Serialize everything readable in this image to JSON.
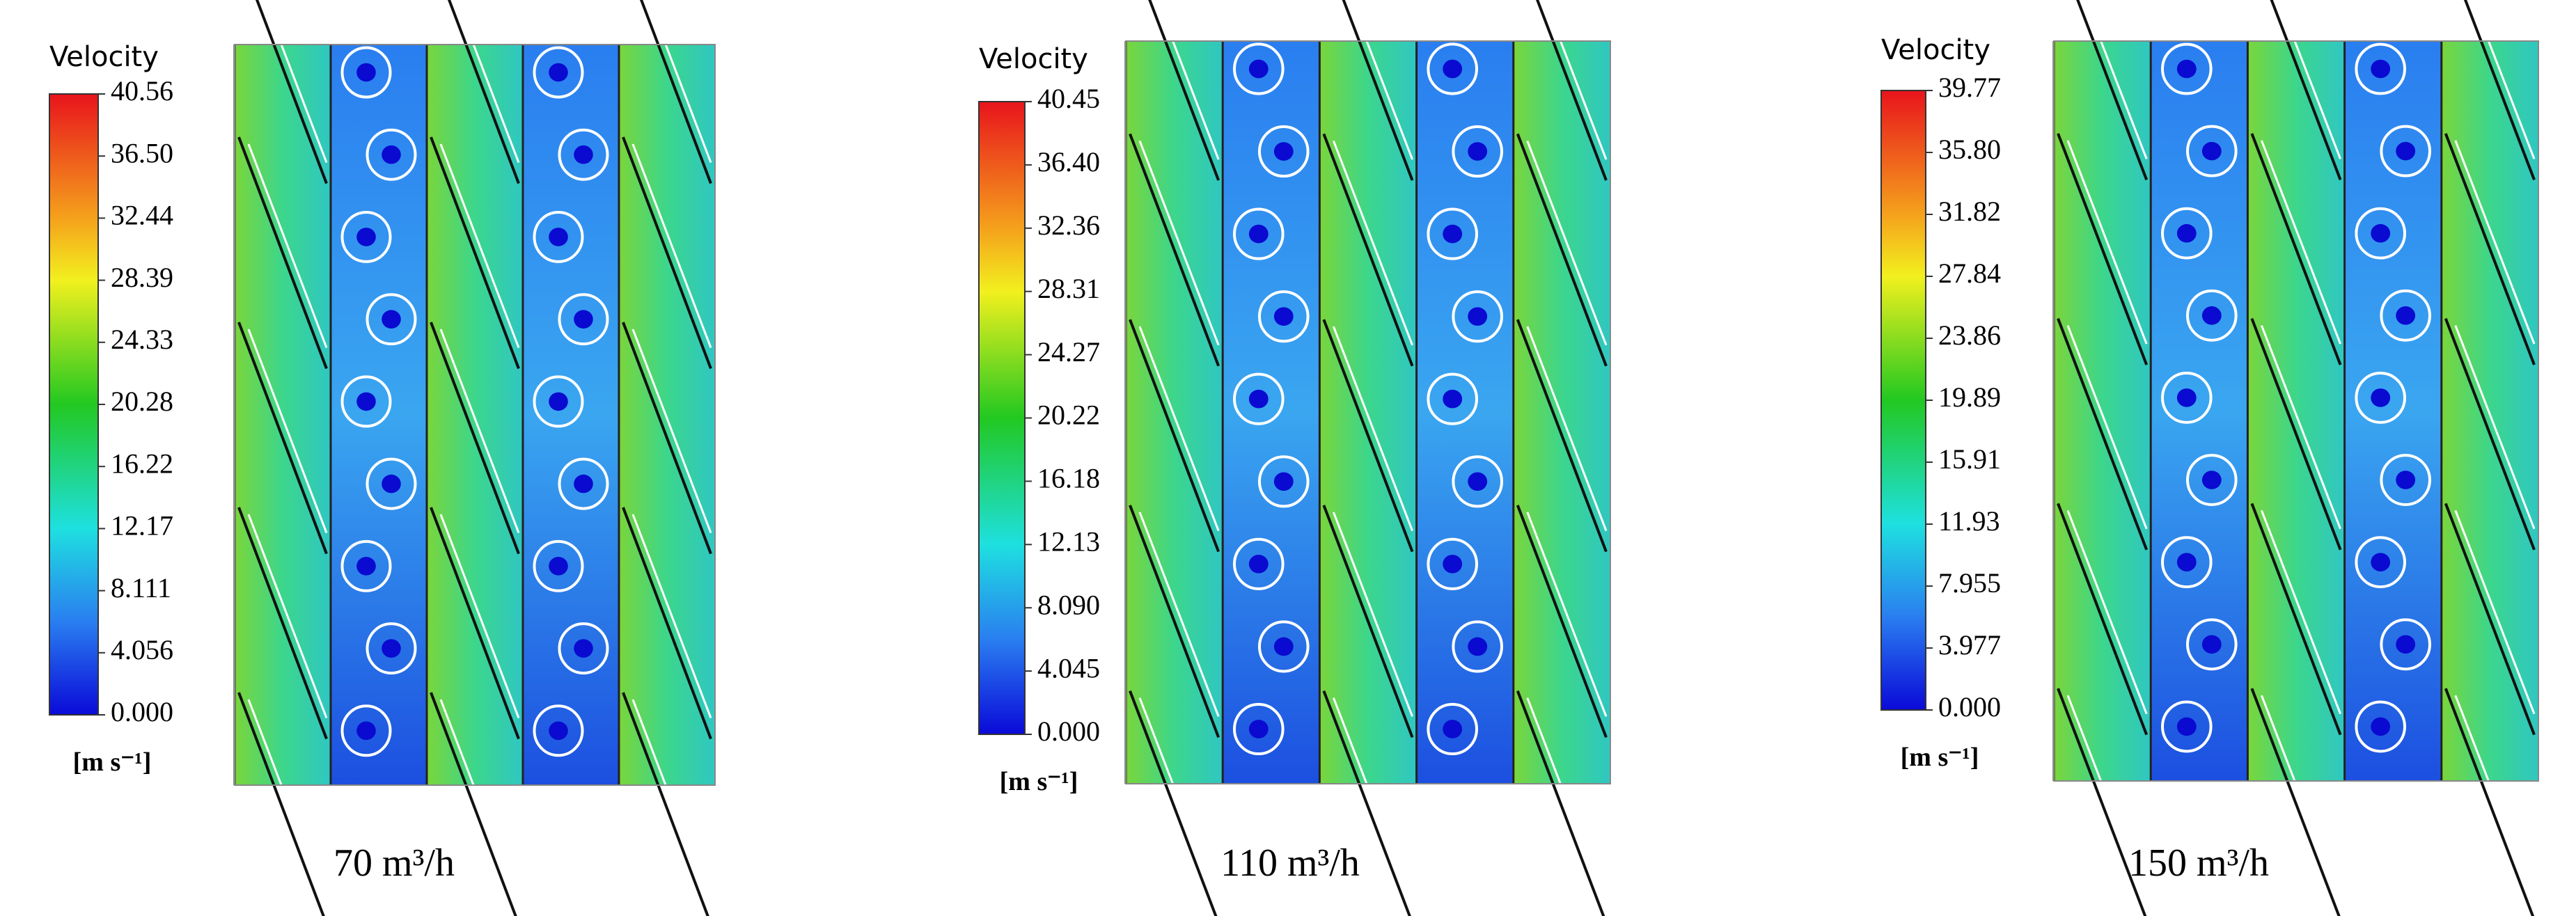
{
  "panels": [
    {
      "legend_title": "Velocity",
      "ticks": [
        "40.56",
        "36.50",
        "32.44",
        "28.39",
        "24.33",
        "20.28",
        "16.22",
        "12.17",
        "8.111",
        "4.056",
        "0.000"
      ],
      "unit": "[m s⁻¹]",
      "caption": "70 m³/h"
    },
    {
      "legend_title": "Velocity",
      "ticks": [
        "40.45",
        "36.40",
        "32.36",
        "28.31",
        "24.27",
        "20.22",
        "16.18",
        "12.13",
        "8.090",
        "4.045",
        "0.000"
      ],
      "unit": "[m s⁻¹]",
      "caption": "110 m³/h"
    },
    {
      "legend_title": "Velocity",
      "ticks": [
        "39.77",
        "35.80",
        "31.82",
        "27.84",
        "23.86",
        "19.89",
        "15.91",
        "11.93",
        "7.955",
        "3.977",
        "0.000"
      ],
      "unit": "[m s⁻¹]",
      "caption": "150 m³/h"
    }
  ]
}
